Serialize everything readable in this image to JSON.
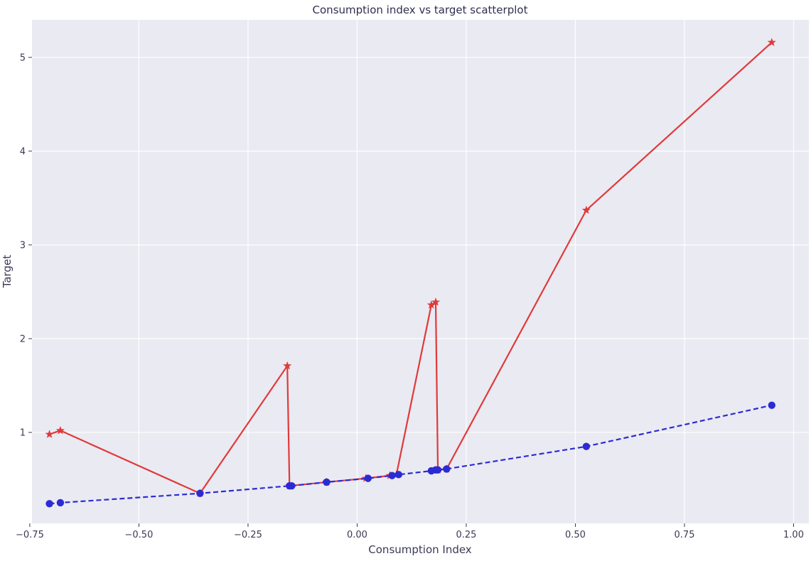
{
  "chart_data": {
    "type": "line",
    "title": "Consumption index vs target scatterplot",
    "xlabel": "Consumption Index",
    "ylabel": "Target",
    "xlim": [
      -0.745,
      1.035
    ],
    "ylim": [
      0.03,
      5.4
    ],
    "xticks": [
      -0.75,
      -0.5,
      -0.25,
      0.0,
      0.25,
      0.5,
      0.75,
      1.0
    ],
    "xtick_labels": [
      "−0.75",
      "−0.50",
      "−0.25",
      "0.00",
      "0.25",
      "0.50",
      "0.75",
      "1.00"
    ],
    "yticks": [
      1,
      2,
      3,
      4,
      5
    ],
    "ytick_labels": [
      "1",
      "2",
      "3",
      "4",
      "5"
    ],
    "grid": true,
    "background": "#eaeaf2",
    "series": [
      {
        "style": "solid-star",
        "color": "#e03a3a",
        "x": [
          -0.705,
          -0.68,
          -0.36,
          -0.16,
          -0.155,
          -0.07,
          0.02,
          0.075,
          0.09,
          0.17,
          0.18,
          0.185,
          0.205,
          0.525,
          0.95
        ],
        "y": [
          0.98,
          1.02,
          0.35,
          1.71,
          0.43,
          0.47,
          0.51,
          0.54,
          0.55,
          2.36,
          2.39,
          0.6,
          0.61,
          3.37,
          5.16
        ]
      },
      {
        "style": "dashed-circle",
        "color": "#2b2bd4",
        "x": [
          -0.705,
          -0.68,
          -0.36,
          -0.155,
          -0.15,
          -0.07,
          0.025,
          0.08,
          0.095,
          0.17,
          0.18,
          0.185,
          0.205,
          0.525,
          0.95
        ],
        "y": [
          0.24,
          0.25,
          0.35,
          0.43,
          0.43,
          0.47,
          0.51,
          0.54,
          0.55,
          0.59,
          0.6,
          0.6,
          0.61,
          0.85,
          1.29
        ]
      }
    ]
  }
}
